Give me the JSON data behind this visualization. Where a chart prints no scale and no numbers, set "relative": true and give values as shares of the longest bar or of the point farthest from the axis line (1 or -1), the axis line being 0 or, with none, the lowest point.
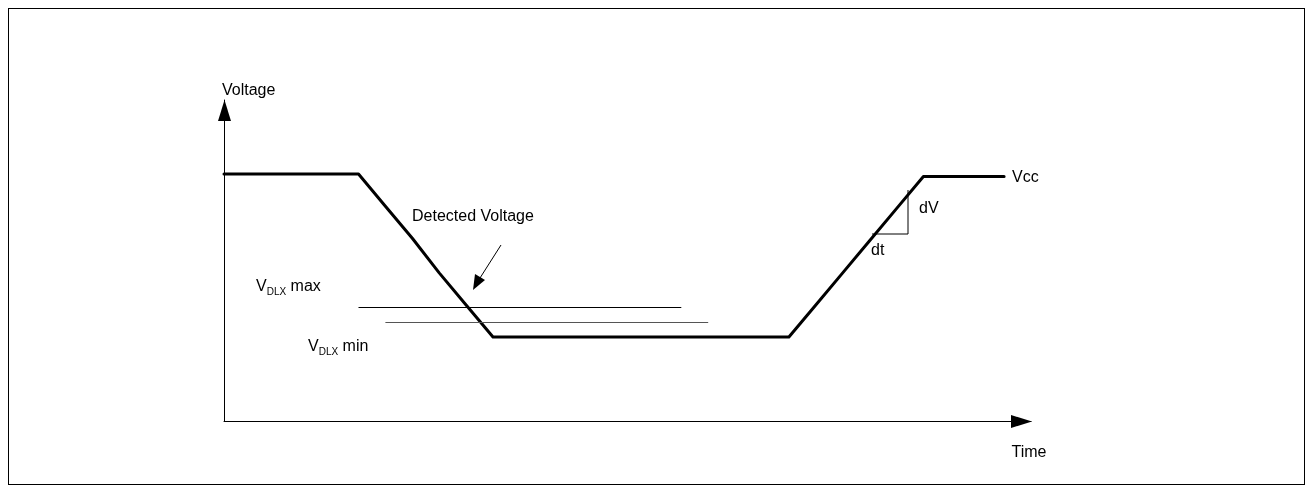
{
  "chart_data": {
    "type": "line",
    "relative": true,
    "xlabel": "Time",
    "ylabel": "Voltage",
    "categories": [
      null,
      null,
      null,
      null,
      null,
      null,
      null,
      null,
      null,
      null,
      null,
      null,
      null,
      null,
      null,
      null,
      null,
      null,
      null,
      null,
      null,
      null,
      null,
      null,
      null,
      null,
      null,
      null,
      null,
      null,
      null
    ],
    "series": [
      {
        "name": "Vcc",
        "color": "#000000",
        "values": [
          1,
          1,
          1,
          1,
          1,
          1,
          0.87,
          0.74,
          0.6,
          0.47,
          0.34,
          0.34,
          0.34,
          0.34,
          0.34,
          0.34,
          0.34,
          0.34,
          0.34,
          0.34,
          0.34,
          0.34,
          0.47,
          0.6,
          0.73,
          0.86,
          0.99,
          0.99,
          0.99,
          0.99,
          null
        ]
      }
    ],
    "ref_lines": [
      {
        "axis": "y",
        "value": 0.46,
        "label": "V$_{DLX}$ max",
        "color": "#000000"
      },
      {
        "axis": "y",
        "value": 0.4,
        "label": "V$_{DLX}$ min",
        "color": "#555555"
      }
    ],
    "annotations": [
      "Detected Voltage",
      "dV",
      "dt"
    ],
    "marker": "none",
    "line_style": "solid",
    "grid": false,
    "legend": false
  }
}
